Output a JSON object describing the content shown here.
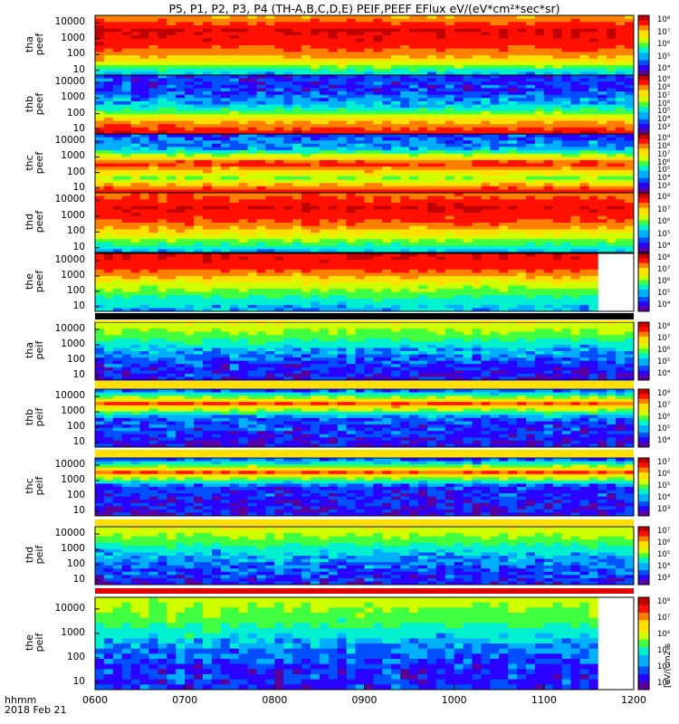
{
  "title": "P5, P1, P2, P3, P4 (TH-A,B,C,D,E) PEIF,PEEF EFlux eV/(eV*cm²*sec*sr)",
  "x_axis": {
    "label": "hhmm",
    "date": "2018 Feb 21",
    "ticks": [
      "0600",
      "0700",
      "0800",
      "0900",
      "1000",
      "1100",
      "1200"
    ]
  },
  "colorbar_unit": "[eV/(cm2-s",
  "colormap": [
    "#5a00a0",
    "#2a00ff",
    "#0050ff",
    "#00b0ff",
    "#00f0d0",
    "#40ff40",
    "#d0ff00",
    "#ffe000",
    "#ff8000",
    "#ff1000",
    "#c00000"
  ],
  "chart_data": {
    "type": "heatmap",
    "x_unit": "hhmm UT",
    "x_range": [
      "0600",
      "1200"
    ],
    "y_scale": "log",
    "y_unit": "eV",
    "y_ticks": [
      10,
      100,
      1000,
      10000
    ],
    "panels": [
      {
        "name": "tha peef",
        "ylabel": [
          "tha",
          "peef"
        ],
        "cb_ticks": [
          "10⁸",
          "10⁷",
          "10⁶",
          "10⁵",
          "10⁴"
        ],
        "profile": [
          3,
          7,
          9,
          9.5,
          7.5
        ],
        "end": "1200"
      },
      {
        "name": "thb peef",
        "ylabel": [
          "thb",
          "peef"
        ],
        "cb_ticks": [
          "10⁹",
          "10⁸",
          "10⁷",
          "10⁶",
          "10⁵",
          "10⁴",
          "10³"
        ],
        "profile": [
          9.5,
          7,
          3,
          1.5,
          1.5
        ],
        "end": "1200"
      },
      {
        "name": "thc peef",
        "ylabel": [
          "thc",
          "peef"
        ],
        "cb_ticks": [
          "10⁹",
          "10⁸",
          "10⁷",
          "10⁶",
          "10⁵",
          "10⁴",
          "10³"
        ],
        "profile": [
          9.5,
          5.5,
          9,
          3,
          1.5
        ],
        "end": "1200"
      },
      {
        "name": "thd peef",
        "ylabel": [
          "thd",
          "peef"
        ],
        "cb_ticks": [
          "10⁸",
          "10⁷",
          "10⁶",
          "10⁵",
          "10⁴"
        ],
        "profile": [
          3,
          6,
          8.5,
          9.5,
          8
        ],
        "end": "1200"
      },
      {
        "name": "the peef",
        "ylabel": [
          "the",
          "peef"
        ],
        "cb_ticks": [
          "10⁸",
          "10⁷",
          "10⁶",
          "10⁵",
          "10⁴"
        ],
        "profile": [
          3,
          4.5,
          6.5,
          9,
          9.5
        ],
        "end": "1136"
      },
      {
        "name": "tha peif",
        "ylabel": [
          "tha",
          "peif"
        ],
        "cb_ticks": [
          "10⁸",
          "10⁷",
          "10⁶",
          "10⁵",
          "10⁴"
        ],
        "profile": [
          1,
          1.5,
          3,
          5,
          6.5
        ],
        "end": "1200"
      },
      {
        "name": "thb peif",
        "ylabel": [
          "thb",
          "peif"
        ],
        "cb_ticks": [
          "10⁸",
          "10⁷",
          "10⁶",
          "10⁵",
          "10⁴"
        ],
        "profile": [
          0.8,
          1.5,
          2,
          8.5,
          1.5
        ],
        "end": "1200"
      },
      {
        "name": "thc peif",
        "ylabel": [
          "thc",
          "peif"
        ],
        "cb_ticks": [
          "10⁷",
          "10⁶",
          "10⁵",
          "10⁴",
          "10³"
        ],
        "profile": [
          1,
          1.2,
          1.5,
          8.5,
          1.2
        ],
        "end": "1200"
      },
      {
        "name": "thd peif",
        "ylabel": [
          "thd",
          "peif"
        ],
        "cb_ticks": [
          "10⁷",
          "10⁶",
          "10⁵",
          "10⁴",
          "10³"
        ],
        "profile": [
          1,
          2,
          3,
          5,
          6.5
        ],
        "end": "1200"
      },
      {
        "name": "the peif",
        "ylabel": [
          "the",
          "peif"
        ],
        "cb_ticks": [
          "10⁸",
          "10⁷",
          "10⁶",
          "10⁵",
          "10⁴",
          "10³"
        ],
        "profile": [
          1.5,
          1.5,
          3,
          5,
          6
        ],
        "end": "1136"
      }
    ]
  }
}
